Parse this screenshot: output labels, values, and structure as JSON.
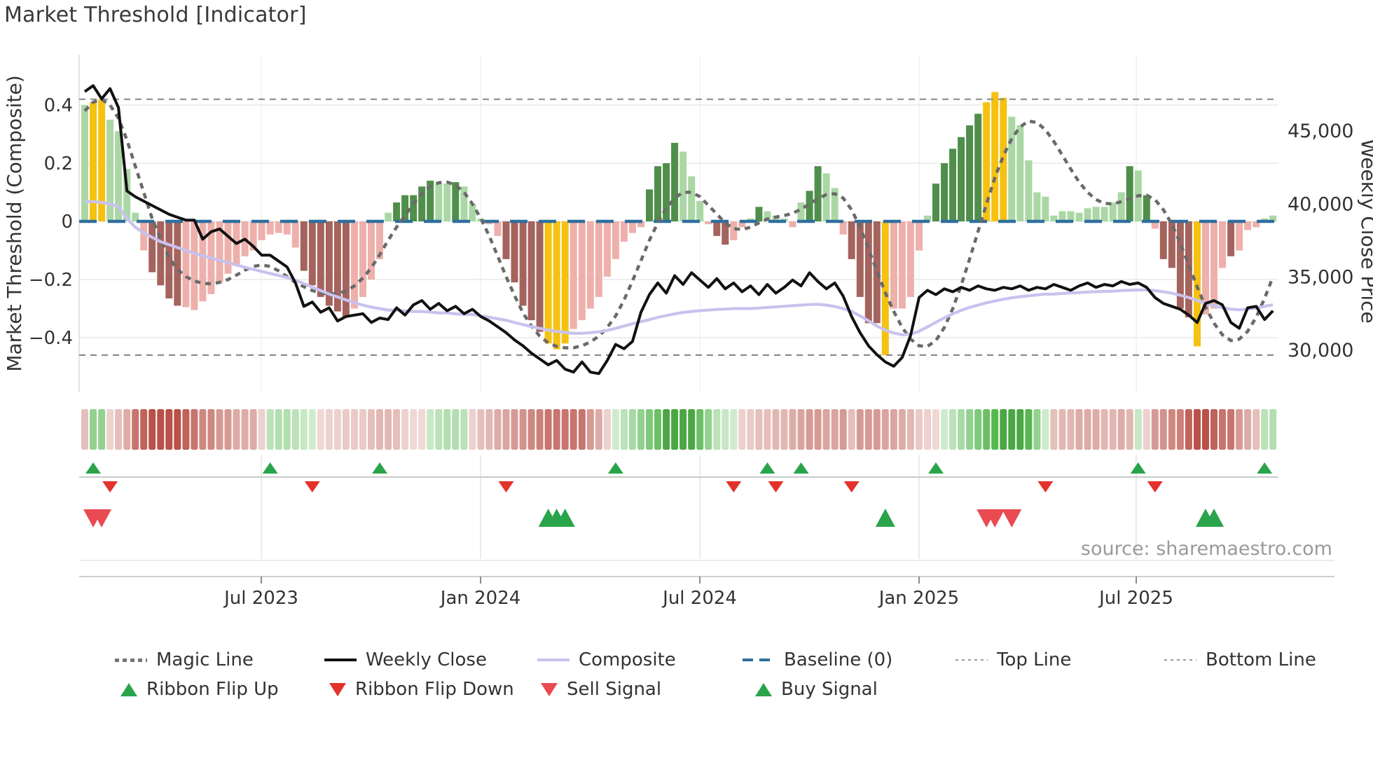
{
  "title": "Market Threshold [Indicator]",
  "source": "source: sharemaestro.com",
  "axes": {
    "left_label": "Market Threshold (Composite)",
    "right_label": "Weekly Close Price",
    "left_ticks": [
      "0.4",
      "0.2",
      "0",
      "−0.2",
      "−0.4"
    ],
    "left_tick_values": [
      0.4,
      0.2,
      0,
      -0.2,
      -0.4
    ],
    "right_ticks": [
      "45,000",
      "40,000",
      "35,000",
      "30,000"
    ],
    "right_tick_values": [
      45000,
      40000,
      35000,
      30000
    ],
    "x_ticks": [
      "Jul 2023",
      "Jan 2024",
      "Jul 2024",
      "Jan 2025",
      "Jul 2025"
    ]
  },
  "colors": {
    "bar_light_green": "#abd7a5",
    "bar_dark_green": "#4f8e4b",
    "bar_yellow": "#f5c211",
    "bar_light_red": "#eeb0ab",
    "bar_dark_red": "#a5635d",
    "magic_line": "#6a6a6a",
    "weekly_close": "#111111",
    "composite": "#c9c2ee",
    "baseline": "#2e6f9e",
    "top_bottom_line": "#8c8c8c",
    "flip_up": "#2aa44a",
    "flip_down": "#e3322b",
    "buy": "#2aa44a",
    "sell": "#ea4a52",
    "grid": "#e8e8e8",
    "tick_text": "#333333",
    "source_text": "#9a9a9a"
  },
  "chart_data": {
    "type": "bar+line",
    "x_unit": "week-index (weekly bars, Feb 2023 - Oct 2025)",
    "n_weeks": 142,
    "x_tick_labels": [
      "Jul 2023",
      "Jan 2024",
      "Jul 2024",
      "Jan 2025",
      "Jul 2025"
    ],
    "x_tick_weeks": [
      20.95,
      46.97,
      72.99,
      99.0,
      124.77
    ],
    "ylabel_left": "Market Threshold (Composite)",
    "ylabel_right": "Weekly Close Price",
    "ylim_left": [
      -0.59,
      0.57
    ],
    "ylim_right": [
      27100,
      50200
    ],
    "baseline": 0,
    "top_line": 0.42,
    "bottom_line": -0.46,
    "grid": true,
    "legend_position": "bottom",
    "threshold": [
      0.4,
      0.41,
      0.42,
      0.35,
      0.31,
      0.18,
      0.03,
      -0.1,
      -0.175,
      -0.22,
      -0.265,
      -0.29,
      -0.295,
      -0.305,
      -0.275,
      -0.25,
      -0.21,
      -0.18,
      -0.15,
      -0.12,
      -0.1,
      -0.065,
      -0.045,
      -0.04,
      -0.045,
      -0.09,
      -0.17,
      -0.22,
      -0.26,
      -0.29,
      -0.31,
      -0.33,
      -0.3,
      -0.26,
      -0.2,
      -0.13,
      0.03,
      0.065,
      0.09,
      0.09,
      0.12,
      0.14,
      0.13,
      0.13,
      0.135,
      0.12,
      0.06,
      0.01,
      -0.01,
      -0.05,
      -0.13,
      -0.21,
      -0.29,
      -0.34,
      -0.38,
      -0.42,
      -0.44,
      -0.42,
      -0.37,
      -0.34,
      -0.3,
      -0.26,
      -0.19,
      -0.13,
      -0.07,
      -0.04,
      -0.02,
      0.11,
      0.19,
      0.2,
      0.27,
      0.24,
      0.155,
      0.07,
      -0.01,
      -0.05,
      -0.08,
      -0.065,
      -0.02,
      0.01,
      0.05,
      0.035,
      0.02,
      0.01,
      -0.02,
      0.065,
      0.105,
      0.19,
      0.165,
      0.115,
      -0.045,
      -0.13,
      -0.26,
      -0.35,
      -0.35,
      -0.46,
      -0.3,
      -0.3,
      -0.26,
      -0.1,
      0.02,
      0.13,
      0.2,
      0.25,
      0.29,
      0.33,
      0.37,
      0.41,
      0.445,
      0.425,
      0.36,
      0.33,
      0.21,
      0.1,
      0.085,
      0.02,
      0.035,
      0.035,
      0.03,
      0.045,
      0.05,
      0.05,
      0.065,
      0.1,
      0.19,
      0.175,
      0.09,
      -0.025,
      -0.13,
      -0.16,
      -0.3,
      -0.33,
      -0.43,
      -0.32,
      -0.3,
      -0.16,
      -0.12,
      -0.1,
      -0.03,
      -0.02,
      0.01,
      0.02
    ],
    "bar_state": [
      "g",
      "y",
      "y",
      "g",
      "g",
      "g",
      "g",
      "r",
      "R",
      "R",
      "R",
      "R",
      "r",
      "r",
      "r",
      "r",
      "r",
      "r",
      "r",
      "r",
      "r",
      "r",
      "r",
      "r",
      "r",
      "r",
      "R",
      "R",
      "R",
      "R",
      "R",
      "R",
      "r",
      "r",
      "r",
      "r",
      "g",
      "G",
      "G",
      "G",
      "G",
      "G",
      "g",
      "g",
      "G",
      "g",
      "g",
      "g",
      "r",
      "r",
      "R",
      "R",
      "R",
      "R",
      "R",
      "y",
      "y",
      "y",
      "r",
      "r",
      "r",
      "r",
      "r",
      "r",
      "r",
      "r",
      "r",
      "G",
      "G",
      "G",
      "G",
      "g",
      "g",
      "g",
      "r",
      "R",
      "R",
      "r",
      "r",
      "g",
      "G",
      "g",
      "g",
      "g",
      "r",
      "g",
      "G",
      "G",
      "g",
      "g",
      "r",
      "R",
      "R",
      "R",
      "R",
      "y",
      "r",
      "r",
      "r",
      "r",
      "g",
      "G",
      "G",
      "G",
      "G",
      "G",
      "G",
      "y",
      "y",
      "y",
      "g",
      "g",
      "g",
      "g",
      "g",
      "g",
      "g",
      "g",
      "g",
      "g",
      "g",
      "g",
      "g",
      "g",
      "G",
      "g",
      "G",
      "r",
      "R",
      "R",
      "R",
      "R",
      "y",
      "r",
      "r",
      "r",
      "R",
      "r",
      "r",
      "r",
      "g",
      "g"
    ],
    "weekly_close": [
      47700,
      48100,
      47200,
      47900,
      46600,
      40900,
      40500,
      40200,
      39900,
      39600,
      39300,
      39100,
      38900,
      38900,
      37600,
      38100,
      38300,
      37800,
      37300,
      37600,
      37100,
      36500,
      36500,
      36100,
      35700,
      34600,
      33000,
      33300,
      32600,
      32900,
      32000,
      32300,
      32400,
      32500,
      31900,
      32200,
      32100,
      32900,
      32400,
      33100,
      33400,
      32800,
      33200,
      32700,
      33000,
      32500,
      32800,
      32300,
      32000,
      31600,
      31200,
      30700,
      30300,
      29800,
      29400,
      29000,
      29300,
      28700,
      28500,
      29200,
      28500,
      28400,
      29300,
      30400,
      30100,
      30600,
      32600,
      33800,
      34600,
      33900,
      35100,
      34500,
      35300,
      34800,
      34300,
      34900,
      34200,
      34600,
      34000,
      34400,
      33800,
      34500,
      33900,
      34300,
      34800,
      34400,
      35300,
      34700,
      34200,
      34600,
      33700,
      32300,
      31200,
      30300,
      29700,
      29200,
      28900,
      29500,
      31000,
      33600,
      34100,
      33800,
      34200,
      34000,
      34300,
      34100,
      34400,
      34200,
      34100,
      34300,
      34200,
      34400,
      34100,
      34300,
      34200,
      34500,
      34300,
      34100,
      34400,
      34600,
      34300,
      34500,
      34400,
      34700,
      34500,
      34600,
      34300,
      33600,
      33200,
      33000,
      32800,
      32400,
      31900,
      33200,
      33400,
      33100,
      31900,
      31500,
      32900,
      33000,
      32100,
      32700
    ],
    "composite": [
      0.068,
      0.068,
      0.065,
      0.06,
      0.05,
      0.01,
      -0.02,
      -0.04,
      -0.055,
      -0.07,
      -0.08,
      -0.09,
      -0.1,
      -0.11,
      -0.118,
      -0.126,
      -0.134,
      -0.142,
      -0.15,
      -0.158,
      -0.165,
      -0.172,
      -0.179,
      -0.186,
      -0.193,
      -0.203,
      -0.214,
      -0.226,
      -0.238,
      -0.25,
      -0.26,
      -0.27,
      -0.28,
      -0.288,
      -0.295,
      -0.3,
      -0.305,
      -0.305,
      -0.308,
      -0.31,
      -0.31,
      -0.312,
      -0.315,
      -0.315,
      -0.318,
      -0.32,
      -0.32,
      -0.325,
      -0.33,
      -0.335,
      -0.34,
      -0.348,
      -0.355,
      -0.362,
      -0.368,
      -0.374,
      -0.378,
      -0.382,
      -0.385,
      -0.385,
      -0.383,
      -0.38,
      -0.375,
      -0.368,
      -0.36,
      -0.352,
      -0.345,
      -0.338,
      -0.33,
      -0.324,
      -0.318,
      -0.313,
      -0.31,
      -0.307,
      -0.305,
      -0.303,
      -0.302,
      -0.3,
      -0.3,
      -0.3,
      -0.298,
      -0.296,
      -0.294,
      -0.292,
      -0.29,
      -0.288,
      -0.286,
      -0.285,
      -0.288,
      -0.293,
      -0.3,
      -0.31,
      -0.325,
      -0.342,
      -0.36,
      -0.374,
      -0.384,
      -0.39,
      -0.388,
      -0.378,
      -0.363,
      -0.347,
      -0.332,
      -0.318,
      -0.306,
      -0.296,
      -0.288,
      -0.28,
      -0.274,
      -0.268,
      -0.263,
      -0.259,
      -0.256,
      -0.253,
      -0.25,
      -0.25,
      -0.248,
      -0.246,
      -0.245,
      -0.243,
      -0.242,
      -0.241,
      -0.24,
      -0.238,
      -0.237,
      -0.236,
      -0.236,
      -0.238,
      -0.242,
      -0.247,
      -0.254,
      -0.262,
      -0.272,
      -0.282,
      -0.29,
      -0.297,
      -0.302,
      -0.304,
      -0.302,
      -0.298,
      -0.292,
      -0.287
    ],
    "magic_line": [
      0.38,
      0.41,
      0.42,
      0.4,
      0.355,
      0.28,
      0.19,
      0.1,
      0.01,
      -0.06,
      -0.125,
      -0.165,
      -0.19,
      -0.205,
      -0.213,
      -0.215,
      -0.21,
      -0.2,
      -0.185,
      -0.168,
      -0.155,
      -0.15,
      -0.155,
      -0.17,
      -0.19,
      -0.21,
      -0.225,
      -0.238,
      -0.246,
      -0.25,
      -0.248,
      -0.24,
      -0.222,
      -0.195,
      -0.16,
      -0.115,
      -0.065,
      -0.02,
      0.02,
      0.06,
      0.095,
      0.12,
      0.133,
      0.135,
      0.125,
      0.1,
      0.06,
      0.01,
      -0.05,
      -0.12,
      -0.19,
      -0.255,
      -0.315,
      -0.36,
      -0.395,
      -0.418,
      -0.43,
      -0.435,
      -0.435,
      -0.428,
      -0.415,
      -0.395,
      -0.365,
      -0.325,
      -0.27,
      -0.205,
      -0.135,
      -0.065,
      -0.005,
      0.045,
      0.08,
      0.1,
      0.1,
      0.085,
      0.055,
      0.025,
      -0.005,
      -0.025,
      -0.028,
      -0.02,
      -0.005,
      0.008,
      0.015,
      0.02,
      0.028,
      0.042,
      0.06,
      0.078,
      0.092,
      0.095,
      0.08,
      0.04,
      -0.02,
      -0.095,
      -0.17,
      -0.245,
      -0.31,
      -0.365,
      -0.405,
      -0.428,
      -0.43,
      -0.41,
      -0.365,
      -0.3,
      -0.22,
      -0.13,
      -0.035,
      0.06,
      0.15,
      0.225,
      0.285,
      0.325,
      0.345,
      0.34,
      0.315,
      0.275,
      0.228,
      0.18,
      0.135,
      0.1,
      0.075,
      0.062,
      0.06,
      0.068,
      0.078,
      0.088,
      0.09,
      0.075,
      0.04,
      -0.01,
      -0.075,
      -0.15,
      -0.225,
      -0.295,
      -0.35,
      -0.39,
      -0.41,
      -0.405,
      -0.378,
      -0.33,
      -0.265,
      -0.19
    ],
    "ribbon": [
      -1,
      2,
      2,
      -0.5,
      -1,
      -1.5,
      -3,
      -3.5,
      -4,
      -4,
      -4,
      -4,
      -3.5,
      -3,
      -2.5,
      -2.5,
      -2,
      -2,
      -1.5,
      -1.5,
      -1.5,
      -0.5,
      1,
      1.2,
      1.2,
      1,
      0.7,
      0.5,
      -0.3,
      -0.5,
      -0.5,
      -0.7,
      -0.7,
      -0.7,
      -1,
      -1.2,
      -1.2,
      -1,
      -0.5,
      -0.3,
      -0.3,
      0.7,
      1,
      1.2,
      1.2,
      1,
      -0.5,
      -1,
      -1.2,
      -1.5,
      -1.7,
      -2,
      -2.2,
      -2.5,
      -2.7,
      -3,
      -3,
      -3,
      -3,
      -3,
      -2,
      -1.5,
      -0.5,
      0.5,
      1,
      1.5,
      2,
      2.5,
      3,
      4,
      4,
      4,
      4,
      3,
      2,
      1,
      0.7,
      0.5,
      -0.5,
      -0.7,
      -1,
      -1,
      -1.2,
      -1.2,
      -1.5,
      -1.7,
      -2,
      -2,
      -1.7,
      -1.7,
      -2,
      -1,
      -2,
      -2,
      -2,
      -1.7,
      -1.7,
      -1.5,
      -1.2,
      -0.7,
      -0.5,
      -0.3,
      0.5,
      1,
      1.5,
      2,
      2.5,
      3,
      3.5,
      4,
      4,
      4,
      3.5,
      2,
      0.5,
      -1,
      -1.2,
      -1.2,
      -1.5,
      -1.5,
      -1.5,
      -1.2,
      -1.2,
      -1.5,
      -1.2,
      0.7,
      -0.5,
      -2,
      -2.2,
      -2.5,
      -2.7,
      -3.5,
      -4,
      -4,
      -3.5,
      -3,
      -3,
      -2,
      -1.5,
      -1,
      1,
      1.2
    ],
    "signals": {
      "ribbon_flip_up_weeks": [
        1,
        22,
        35,
        63,
        81,
        85,
        101,
        125,
        140
      ],
      "ribbon_flip_down_weeks": [
        3,
        27,
        50,
        77,
        82,
        91,
        114,
        127
      ],
      "buy_signal_weeks": [
        55,
        56,
        57,
        95,
        133,
        134
      ],
      "sell_signal_weeks": [
        1,
        2,
        107,
        108,
        110
      ]
    }
  },
  "legend": {
    "row1": [
      {
        "label": "Magic Line",
        "type": "dotted-bold"
      },
      {
        "label": "Weekly Close",
        "type": "solid-black"
      },
      {
        "label": "Composite",
        "type": "solid-lavender"
      },
      {
        "label": "Baseline (0)",
        "type": "dashed-blue"
      },
      {
        "label": "Top Line",
        "type": "dotted-thin"
      },
      {
        "label": "Bottom Line",
        "type": "dotted-thin"
      }
    ],
    "row2": [
      {
        "label": "Ribbon Flip Up",
        "type": "triangle-up-green"
      },
      {
        "label": "Ribbon Flip Down",
        "type": "triangle-down-red"
      },
      {
        "label": "Sell Signal",
        "type": "triangle-down-red-light"
      },
      {
        "label": "Buy Signal",
        "type": "triangle-up-green"
      }
    ]
  }
}
